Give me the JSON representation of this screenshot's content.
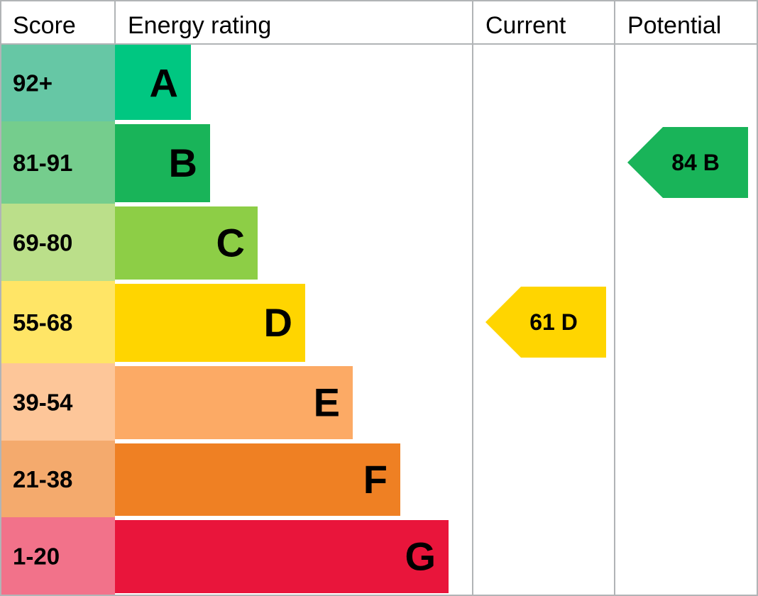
{
  "chart_data": {
    "type": "table",
    "headers": {
      "score": "Score",
      "energy_rating": "Energy rating",
      "current": "Current",
      "potential": "Potential"
    },
    "bands": [
      {
        "score": "92+",
        "letter": "A",
        "color": "#00c781",
        "score_bg": "#66c7a5",
        "max": 100
      },
      {
        "score": "81-91",
        "letter": "B",
        "color": "#19b459",
        "score_bg": "#75cd8d",
        "max": 91
      },
      {
        "score": "69-80",
        "letter": "C",
        "color": "#8dce46",
        "score_bg": "#bbdf8a",
        "max": 80
      },
      {
        "score": "55-68",
        "letter": "D",
        "color": "#ffd500",
        "score_bg": "#ffe566",
        "max": 68
      },
      {
        "score": "39-54",
        "letter": "E",
        "color": "#fcaa65",
        "score_bg": "#fdc699",
        "max": 54
      },
      {
        "score": "21-38",
        "letter": "F",
        "color": "#ef8023",
        "score_bg": "#f4aa6d",
        "max": 38
      },
      {
        "score": "1-20",
        "letter": "G",
        "color": "#e9153b",
        "score_bg": "#f2728a",
        "max": 20
      }
    ],
    "current": {
      "value": 61,
      "band": "D",
      "label": "61 D",
      "color": "#ffd500"
    },
    "potential": {
      "value": 84,
      "band": "B",
      "label": "84 B",
      "color": "#19b459"
    }
  }
}
